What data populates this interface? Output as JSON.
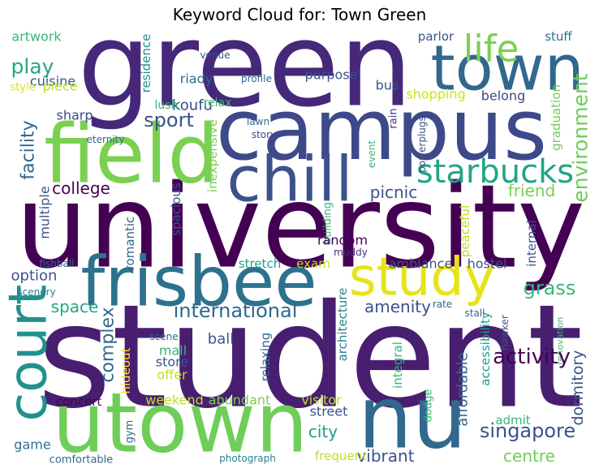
{
  "chart_data": {
    "type": "wordcloud",
    "title": "Keyword Cloud for: Town Green",
    "words": [
      {
        "text": "green",
        "weight": 143,
        "color": "#46287a"
      },
      {
        "text": "campus",
        "weight": 104,
        "color": "#3e4989"
      },
      {
        "text": "university",
        "weight": 142,
        "color": "#440154"
      },
      {
        "text": "student",
        "weight": 176,
        "color": "#481f70"
      },
      {
        "text": "utown",
        "weight": 102,
        "color": "#6ece58"
      },
      {
        "text": "nu",
        "weight": 106,
        "color": "#31688e"
      },
      {
        "text": "town",
        "weight": 77,
        "color": "#31688e"
      },
      {
        "text": "field",
        "weight": 100,
        "color": "#7ad151"
      },
      {
        "text": "chill",
        "weight": 77,
        "color": "#3b528b"
      },
      {
        "text": "frisbee",
        "weight": 85,
        "color": "#2c728e"
      },
      {
        "text": "study",
        "weight": 65,
        "color": "#e5e419"
      },
      {
        "text": "court",
        "weight": 65,
        "color": "#21918c"
      },
      {
        "text": "life",
        "weight": 45,
        "color": "#7ad151"
      },
      {
        "text": "starbucks",
        "weight": 40,
        "color": "#21a585"
      },
      {
        "text": "environment",
        "weight": 25,
        "color": "#6ece58"
      },
      {
        "text": "play",
        "weight": 25,
        "color": "#22a884"
      },
      {
        "text": "artwork",
        "weight": 16,
        "color": "#35b779"
      },
      {
        "text": "cuisine",
        "weight": 16,
        "color": "#3b528b"
      },
      {
        "text": "style",
        "weight": 13,
        "color": "#d5e21a"
      },
      {
        "text": "piece",
        "weight": 16,
        "color": "#bddf26"
      },
      {
        "text": "facility",
        "weight": 22,
        "color": "#31688e"
      },
      {
        "text": "sharp",
        "weight": 16,
        "color": "#3e4989"
      },
      {
        "text": "eternity",
        "weight": 12,
        "color": "#31688e"
      },
      {
        "text": "college",
        "weight": 20,
        "color": "#440154"
      },
      {
        "text": "multiple",
        "weight": 16,
        "color": "#3b528b"
      },
      {
        "text": "fishball",
        "weight": 12,
        "color": "#31688e"
      },
      {
        "text": "option",
        "weight": 18,
        "color": "#3b528b"
      },
      {
        "text": "scenery",
        "weight": 12,
        "color": "#26828e"
      },
      {
        "text": "space",
        "weight": 20,
        "color": "#21a585"
      },
      {
        "text": "complex",
        "weight": 22,
        "color": "#31688e"
      },
      {
        "text": "romantic",
        "weight": 15,
        "color": "#31688e"
      },
      {
        "text": "spacious",
        "weight": 15,
        "color": "#3b528b"
      },
      {
        "text": "inexpensive",
        "weight": 15,
        "color": "#7ad151"
      },
      {
        "text": "residence",
        "weight": 15,
        "color": "#21918c"
      },
      {
        "text": "riady",
        "weight": 16,
        "color": "#31688e"
      },
      {
        "text": "venue",
        "weight": 12,
        "color": "#3b528b"
      },
      {
        "text": "koufu",
        "weight": 18,
        "color": "#3e4989"
      },
      {
        "text": "lush",
        "weight": 14,
        "color": "#35b779"
      },
      {
        "text": "relax",
        "weight": 14,
        "color": "#35b779"
      },
      {
        "text": "sport",
        "weight": 24,
        "color": "#3b528b"
      },
      {
        "text": "profile",
        "weight": 12,
        "color": "#31688e"
      },
      {
        "text": "purpose",
        "weight": 16,
        "color": "#3b528b"
      },
      {
        "text": "lawn",
        "weight": 12,
        "color": "#31688e"
      },
      {
        "text": "story",
        "weight": 12,
        "color": "#3e4989"
      },
      {
        "text": "parlor",
        "weight": 15,
        "color": "#3b528b"
      },
      {
        "text": "stuff",
        "weight": 15,
        "color": "#2c728e"
      },
      {
        "text": "bus",
        "weight": 16,
        "color": "#3b528b"
      },
      {
        "text": "shopping",
        "weight": 16,
        "color": "#d0e11c"
      },
      {
        "text": "belong",
        "weight": 16,
        "color": "#3e4989"
      },
      {
        "text": "graduation",
        "weight": 15,
        "color": "#6ece58"
      },
      {
        "text": "rain",
        "weight": 13,
        "color": "#46327e"
      },
      {
        "text": "powerplugs",
        "weight": 12,
        "color": "#3b528b"
      },
      {
        "text": "event",
        "weight": 12,
        "color": "#35b779"
      },
      {
        "text": "picnic",
        "weight": 20,
        "color": "#3b528b"
      },
      {
        "text": "friend",
        "weight": 20,
        "color": "#7ad151"
      },
      {
        "text": "peaceful",
        "weight": 15,
        "color": "#bddf26"
      },
      {
        "text": "building",
        "weight": 13,
        "color": "#35b779"
      },
      {
        "text": "internal",
        "weight": 15,
        "color": "#3b528b"
      },
      {
        "text": "random",
        "weight": 16,
        "color": "#440154"
      },
      {
        "text": "muddy",
        "weight": 12,
        "color": "#472c7a"
      },
      {
        "text": "stretch",
        "weight": 15,
        "color": "#1f9e89"
      },
      {
        "text": "exam",
        "weight": 15,
        "color": "#bddf26"
      },
      {
        "text": "ambiance",
        "weight": 16,
        "color": "#3b528b"
      },
      {
        "text": "hostel",
        "weight": 16,
        "color": "#3b528b"
      },
      {
        "text": "grass",
        "weight": 24,
        "color": "#35b779"
      },
      {
        "text": "international",
        "weight": 24,
        "color": "#31688e"
      },
      {
        "text": "amenity",
        "weight": 20,
        "color": "#3b528b"
      },
      {
        "text": "architecture",
        "weight": 15,
        "color": "#26828e"
      },
      {
        "text": "rate",
        "weight": 12,
        "color": "#31688e"
      },
      {
        "text": "stall",
        "weight": 12,
        "color": "#31688e"
      },
      {
        "text": "scene",
        "weight": 12,
        "color": "#31688e"
      },
      {
        "text": "mall",
        "weight": 16,
        "color": "#35b779"
      },
      {
        "text": "ball",
        "weight": 18,
        "color": "#3b528b"
      },
      {
        "text": "relaxing",
        "weight": 15,
        "color": "#31688e"
      },
      {
        "text": "hideout",
        "weight": 15,
        "color": "#fde725"
      },
      {
        "text": "store",
        "weight": 16,
        "color": "#3b528b"
      },
      {
        "text": "offer",
        "weight": 16,
        "color": "#bddf26"
      },
      {
        "text": "integral",
        "weight": 15,
        "color": "#35b779"
      },
      {
        "text": "accessibility",
        "weight": 15,
        "color": "#1f9e89"
      },
      {
        "text": "hawker",
        "weight": 12,
        "color": "#3b528b"
      },
      {
        "text": "renovation",
        "weight": 11,
        "color": "#35b779"
      },
      {
        "text": "dormitory",
        "weight": 19,
        "color": "#3b528b"
      },
      {
        "text": "activity",
        "weight": 26,
        "color": "#440154"
      },
      {
        "text": "concert",
        "weight": 15,
        "color": "#440154"
      },
      {
        "text": "weekend",
        "weight": 16,
        "color": "#bddf26"
      },
      {
        "text": "abundant",
        "weight": 16,
        "color": "#7ad151"
      },
      {
        "text": "visitor",
        "weight": 16,
        "color": "#bddf26"
      },
      {
        "text": "street",
        "weight": 16,
        "color": "#3b528b"
      },
      {
        "text": "city",
        "weight": 20,
        "color": "#1f9e89"
      },
      {
        "text": "dodge",
        "weight": 13,
        "color": "#35b779"
      },
      {
        "text": "affordable",
        "weight": 18,
        "color": "#31688e"
      },
      {
        "text": "admit",
        "weight": 15,
        "color": "#35b779"
      },
      {
        "text": "singapore",
        "weight": 24,
        "color": "#3b528b"
      },
      {
        "text": "game",
        "weight": 16,
        "color": "#2c728e"
      },
      {
        "text": "gym",
        "weight": 13,
        "color": "#31688e"
      },
      {
        "text": "comfortable",
        "weight": 13,
        "color": "#31688e"
      },
      {
        "text": "photograph",
        "weight": 12,
        "color": "#26828e"
      },
      {
        "text": "vibrant",
        "weight": 20,
        "color": "#3b528b"
      },
      {
        "text": "frequent",
        "weight": 15,
        "color": "#bddf26"
      },
      {
        "text": "centre",
        "weight": 20,
        "color": "#6ece58"
      }
    ]
  }
}
